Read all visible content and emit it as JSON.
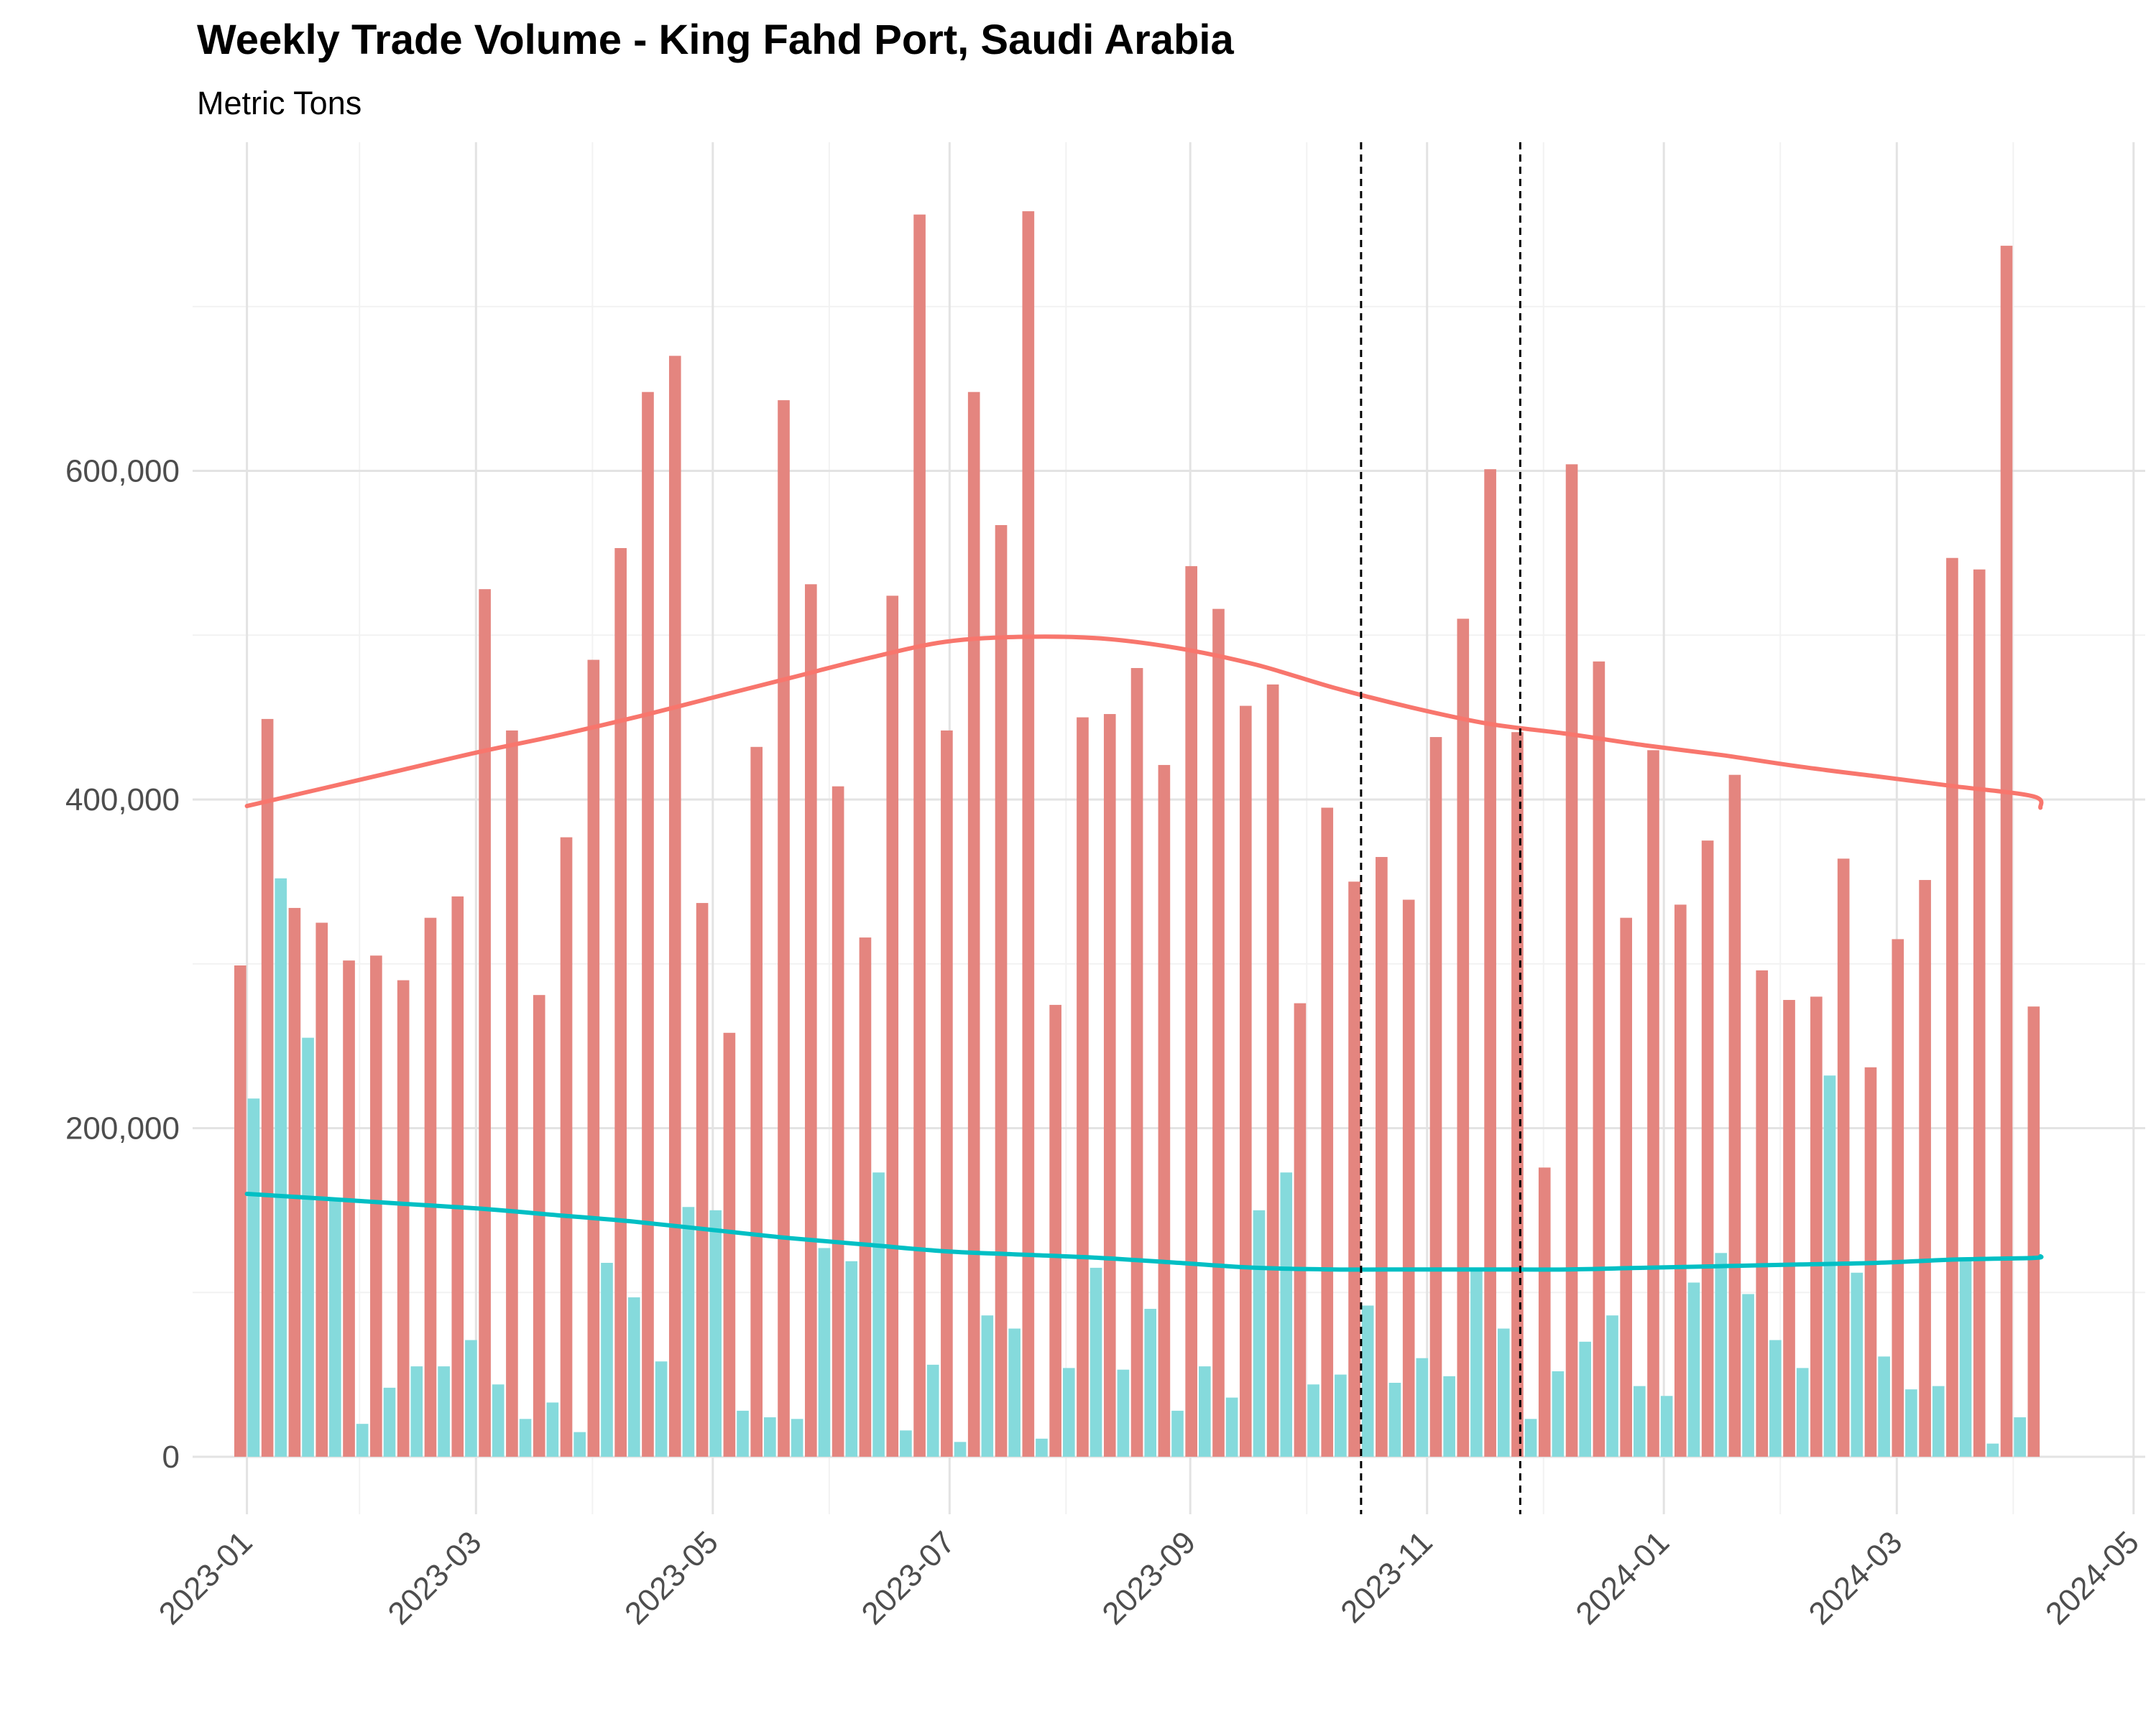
{
  "chart_data": {
    "type": "bar",
    "title": "Weekly Trade Volume - King Fahd Port, Saudi Arabia",
    "subtitle": "Metric Tons",
    "xlabel": "",
    "ylabel": "",
    "x_axis": {
      "type": "date",
      "range": [
        "2022-12-18",
        "2024-05-04"
      ],
      "tick_labels": [
        "2023-01",
        "2023-03",
        "2023-05",
        "2023-07",
        "2023-09",
        "2023-11",
        "2024-01",
        "2024-03",
        "2024-05"
      ],
      "tick_dates": [
        "2023-01-01",
        "2023-03-01",
        "2023-05-01",
        "2023-07-01",
        "2023-09-01",
        "2023-11-01",
        "2024-01-01",
        "2024-03-01",
        "2024-05-01"
      ],
      "minor_tick_dates": [
        "2023-01-30",
        "2023-03-31",
        "2023-05-31",
        "2023-07-31",
        "2023-10-01",
        "2023-12-01",
        "2024-01-31",
        "2024-03-31"
      ]
    },
    "y_axis": {
      "range": [
        -35000,
        800000
      ],
      "tick_values": [
        0,
        200000,
        400000,
        600000
      ],
      "tick_labels": [
        "0",
        "200,000",
        "400,000",
        "600,000"
      ],
      "minor_tick_values": [
        100000,
        300000,
        500000,
        700000
      ]
    },
    "grid": true,
    "legend": "none",
    "reference_lines": {
      "style": "dashed",
      "color": "#000000",
      "dates": [
        "2023-10-15",
        "2023-11-25"
      ]
    },
    "x": [
      "2023-01-01",
      "2023-01-08",
      "2023-01-15",
      "2023-01-22",
      "2023-01-29",
      "2023-02-05",
      "2023-02-12",
      "2023-02-19",
      "2023-02-26",
      "2023-03-05",
      "2023-03-12",
      "2023-03-19",
      "2023-03-26",
      "2023-04-02",
      "2023-04-09",
      "2023-04-16",
      "2023-04-23",
      "2023-04-30",
      "2023-05-07",
      "2023-05-14",
      "2023-05-21",
      "2023-05-28",
      "2023-06-04",
      "2023-06-11",
      "2023-06-18",
      "2023-06-25",
      "2023-07-02",
      "2023-07-09",
      "2023-07-16",
      "2023-07-23",
      "2023-07-30",
      "2023-08-06",
      "2023-08-13",
      "2023-08-20",
      "2023-08-27",
      "2023-09-03",
      "2023-09-10",
      "2023-09-17",
      "2023-09-24",
      "2023-10-01",
      "2023-10-08",
      "2023-10-15",
      "2023-10-22",
      "2023-10-29",
      "2023-11-05",
      "2023-11-12",
      "2023-11-19",
      "2023-11-26",
      "2023-12-03",
      "2023-12-10",
      "2023-12-17",
      "2023-12-24",
      "2023-12-31",
      "2024-01-07",
      "2024-01-14",
      "2024-01-21",
      "2024-01-28",
      "2024-02-04",
      "2024-02-11",
      "2024-02-18",
      "2024-02-25",
      "2024-03-03",
      "2024-03-10",
      "2024-03-17",
      "2024-03-24",
      "2024-03-31",
      "2024-04-07"
    ],
    "series": [
      {
        "color": "#F8766D",
        "bar_color": "#E4857F",
        "values": [
          299000,
          449000,
          334000,
          325000,
          302000,
          305000,
          290000,
          328000,
          341000,
          528000,
          442000,
          281000,
          377000,
          485000,
          553000,
          648000,
          670000,
          337000,
          258000,
          432000,
          643000,
          531000,
          408000,
          316000,
          524000,
          756000,
          442000,
          648000,
          567000,
          758000,
          275000,
          450000,
          452000,
          480000,
          421000,
          542000,
          516000,
          457000,
          470000,
          276000,
          395000,
          350000,
          365000,
          339000,
          438000,
          510000,
          601000,
          441000,
          176000,
          604000,
          484000,
          328000,
          430000,
          336000,
          375000,
          415000,
          296000,
          278000,
          280000,
          364000,
          237000,
          315000,
          351000,
          547000,
          540000,
          737000,
          274000
        ],
        "trend": [
          396000,
          407000,
          418000,
          429000,
          439000,
          450000,
          462000,
          474000,
          486000,
          496000,
          499000,
          498000,
          492000,
          482000,
          468000,
          456000,
          446000,
          440000,
          433000,
          427000,
          420000,
          414000,
          408000,
          402000,
          395000
        ]
      },
      {
        "color": "#00BFC4",
        "bar_color": "#85DADC",
        "values": [
          218000,
          352000,
          255000,
          157000,
          20000,
          42000,
          55000,
          55000,
          71000,
          44000,
          23000,
          33000,
          15000,
          118000,
          97000,
          58000,
          152000,
          150000,
          28000,
          24000,
          23000,
          127000,
          119000,
          173000,
          16000,
          56000,
          9000,
          86000,
          78000,
          11000,
          54000,
          115000,
          53000,
          90000,
          28000,
          55000,
          36000,
          150000,
          173000,
          44000,
          50000,
          92000,
          45000,
          60000,
          49000,
          113000,
          78000,
          23000,
          52000,
          70000,
          86000,
          43000,
          37000,
          106000,
          124000,
          99000,
          71000,
          54000,
          232000,
          112000,
          61000,
          41000,
          43000,
          121000,
          8000,
          24000,
          0
        ],
        "trend": [
          160000,
          157000,
          154000,
          151000,
          147000,
          143000,
          138000,
          133000,
          129000,
          125000,
          123000,
          121000,
          118000,
          115000,
          114000,
          114000,
          114000,
          114000,
          115000,
          116000,
          117000,
          118000,
          120000,
          121000,
          122000
        ]
      }
    ],
    "trend_x": [
      "2023-01-01",
      "2023-01-21",
      "2023-02-10",
      "2023-03-02",
      "2023-03-22",
      "2023-04-11",
      "2023-05-01",
      "2023-05-21",
      "2023-06-10",
      "2023-06-30",
      "2023-07-20",
      "2023-08-09",
      "2023-08-29",
      "2023-09-18",
      "2023-10-08",
      "2023-10-28",
      "2023-11-17",
      "2023-12-07",
      "2023-12-27",
      "2024-01-16",
      "2024-02-05",
      "2024-02-25",
      "2024-03-16",
      "2024-04-05",
      "2024-04-07"
    ]
  }
}
